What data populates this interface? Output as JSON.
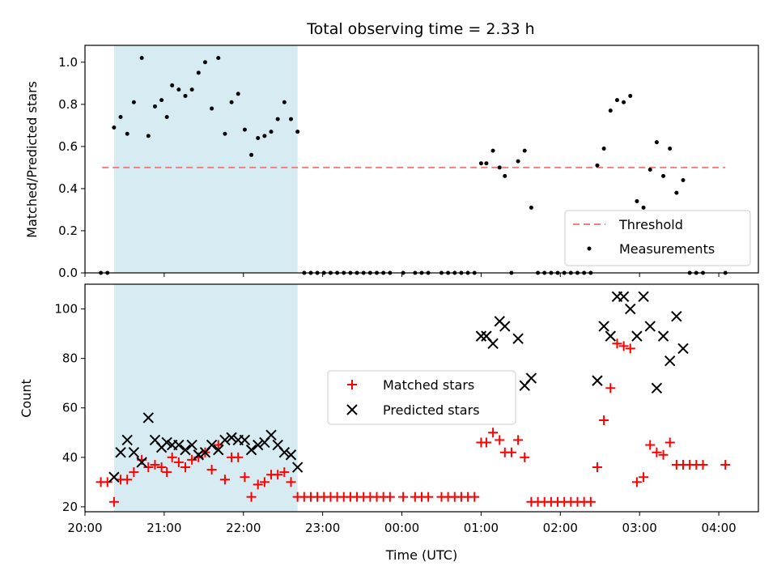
{
  "chart_data": [
    {
      "type": "scatter",
      "title": "Total observing time = 2.33 h",
      "xlabel": "",
      "ylabel": "Matched/Predicted stars",
      "xlim": [
        "20:00",
        "04:30"
      ],
      "xticks": [
        "20:00",
        "21:00",
        "22:00",
        "23:00",
        "00:00",
        "01:00",
        "02:00",
        "03:00",
        "04:00"
      ],
      "ylim": [
        0,
        1.08
      ],
      "yticks": [
        "0.0",
        "0.2",
        "0.4",
        "0.6",
        "0.8",
        "1.0"
      ],
      "grid": false,
      "legend_position": "lower-right",
      "shaded_span": {
        "x": [
          "20:22",
          "22:41"
        ],
        "color": "#add8e6"
      },
      "threshold": {
        "name": "Threshold",
        "value": 0.5,
        "x": [
          "20:13",
          "04:05"
        ],
        "color": "#f08080"
      },
      "series": [
        {
          "name": "Measurements",
          "color": "#000000",
          "points": [
            [
              "20:12",
              0
            ],
            [
              "20:17",
              0
            ],
            [
              "20:22",
              0.69
            ],
            [
              "20:27",
              0.74
            ],
            [
              "20:32",
              0.66
            ],
            [
              "20:37",
              0.81
            ],
            [
              "20:43",
              1.02
            ],
            [
              "20:48",
              0.65
            ],
            [
              "20:53",
              0.79
            ],
            [
              "20:58",
              0.82
            ],
            [
              "21:02",
              0.74
            ],
            [
              "21:06",
              0.89
            ],
            [
              "21:11",
              0.87
            ],
            [
              "21:16",
              0.84
            ],
            [
              "21:21",
              0.87
            ],
            [
              "21:26",
              0.95
            ],
            [
              "21:31",
              1.0
            ],
            [
              "21:36",
              0.78
            ],
            [
              "21:41",
              1.02
            ],
            [
              "21:46",
              0.66
            ],
            [
              "21:51",
              0.81
            ],
            [
              "21:56",
              0.85
            ],
            [
              "22:01",
              0.68
            ],
            [
              "22:06",
              0.56
            ],
            [
              "22:11",
              0.64
            ],
            [
              "22:16",
              0.65
            ],
            [
              "22:21",
              0.67
            ],
            [
              "22:26",
              0.73
            ],
            [
              "22:31",
              0.81
            ],
            [
              "22:36",
              0.73
            ],
            [
              "22:41",
              0.67
            ],
            [
              "22:46",
              0
            ],
            [
              "22:51",
              0
            ],
            [
              "22:56",
              0
            ],
            [
              "23:01",
              0
            ],
            [
              "23:06",
              0
            ],
            [
              "23:11",
              0
            ],
            [
              "23:16",
              0
            ],
            [
              "23:21",
              0
            ],
            [
              "23:26",
              0
            ],
            [
              "23:31",
              0
            ],
            [
              "23:36",
              0
            ],
            [
              "23:41",
              0
            ],
            [
              "23:46",
              0
            ],
            [
              "23:51",
              0
            ],
            [
              "00:01",
              0
            ],
            [
              "00:10",
              0
            ],
            [
              "00:15",
              0
            ],
            [
              "00:20",
              0
            ],
            [
              "00:30",
              0
            ],
            [
              "00:35",
              0
            ],
            [
              "00:40",
              0
            ],
            [
              "00:45",
              0
            ],
            [
              "00:50",
              0
            ],
            [
              "00:55",
              0
            ],
            [
              "01:00",
              0.52
            ],
            [
              "01:04",
              0.52
            ],
            [
              "01:09",
              0.58
            ],
            [
              "01:14",
              0.5
            ],
            [
              "01:18",
              0.46
            ],
            [
              "01:23",
              0
            ],
            [
              "01:28",
              0.53
            ],
            [
              "01:33",
              0.58
            ],
            [
              "01:38",
              0.31
            ],
            [
              "01:43",
              0
            ],
            [
              "01:48",
              0
            ],
            [
              "01:53",
              0
            ],
            [
              "01:58",
              0
            ],
            [
              "02:03",
              0
            ],
            [
              "02:08",
              0
            ],
            [
              "02:13",
              0
            ],
            [
              "02:18",
              0
            ],
            [
              "02:23",
              0
            ],
            [
              "02:28",
              0.51
            ],
            [
              "02:33",
              0.59
            ],
            [
              "02:38",
              0.77
            ],
            [
              "02:43",
              0.82
            ],
            [
              "02:48",
              0.81
            ],
            [
              "02:53",
              0.84
            ],
            [
              "02:58",
              0.34
            ],
            [
              "03:03",
              0.31
            ],
            [
              "03:08",
              0.49
            ],
            [
              "03:13",
              0.62
            ],
            [
              "03:18",
              0.46
            ],
            [
              "03:23",
              0.59
            ],
            [
              "03:28",
              0.38
            ],
            [
              "03:33",
              0.44
            ],
            [
              "03:38",
              0
            ],
            [
              "03:43",
              0
            ],
            [
              "03:48",
              0
            ],
            [
              "04:05",
              0
            ]
          ]
        }
      ]
    },
    {
      "type": "scatter",
      "title": "",
      "xlabel": "Time (UTC)",
      "ylabel": "Count",
      "xlim": [
        "20:00",
        "04:30"
      ],
      "xticks": [
        "20:00",
        "21:00",
        "22:00",
        "23:00",
        "00:00",
        "01:00",
        "02:00",
        "03:00",
        "04:00"
      ],
      "ylim": [
        18,
        110
      ],
      "yticks": [
        "20",
        "40",
        "60",
        "80",
        "100"
      ],
      "grid": false,
      "legend_position": "center",
      "shaded_span": {
        "x": [
          "20:22",
          "22:41"
        ],
        "color": "#add8e6"
      },
      "series": [
        {
          "name": "Matched stars",
          "marker": "plus",
          "color": "#ff0000",
          "points": [
            [
              "20:12",
              30
            ],
            [
              "20:17",
              30
            ],
            [
              "20:22",
              22
            ],
            [
              "20:27",
              31
            ],
            [
              "20:32",
              31
            ],
            [
              "20:37",
              34
            ],
            [
              "20:43",
              39
            ],
            [
              "20:48",
              36
            ],
            [
              "20:53",
              37
            ],
            [
              "20:58",
              36
            ],
            [
              "21:02",
              34
            ],
            [
              "21:06",
              40
            ],
            [
              "21:11",
              38
            ],
            [
              "21:16",
              36
            ],
            [
              "21:21",
              39
            ],
            [
              "21:26",
              40
            ],
            [
              "21:31",
              42
            ],
            [
              "21:36",
              35
            ],
            [
              "21:41",
              45
            ],
            [
              "21:46",
              31
            ],
            [
              "21:51",
              40
            ],
            [
              "21:56",
              40
            ],
            [
              "22:01",
              32
            ],
            [
              "22:06",
              24
            ],
            [
              "22:11",
              29
            ],
            [
              "22:16",
              30
            ],
            [
              "22:21",
              33
            ],
            [
              "22:26",
              33
            ],
            [
              "22:31",
              34
            ],
            [
              "22:36",
              30
            ],
            [
              "22:41",
              24
            ],
            [
              "22:46",
              24
            ],
            [
              "22:51",
              24
            ],
            [
              "22:56",
              24
            ],
            [
              "23:01",
              24
            ],
            [
              "23:06",
              24
            ],
            [
              "23:11",
              24
            ],
            [
              "23:16",
              24
            ],
            [
              "23:21",
              24
            ],
            [
              "23:26",
              24
            ],
            [
              "23:31",
              24
            ],
            [
              "23:36",
              24
            ],
            [
              "23:41",
              24
            ],
            [
              "23:46",
              24
            ],
            [
              "23:51",
              24
            ],
            [
              "00:01",
              24
            ],
            [
              "00:10",
              24
            ],
            [
              "00:15",
              24
            ],
            [
              "00:20",
              24
            ],
            [
              "00:30",
              24
            ],
            [
              "00:35",
              24
            ],
            [
              "00:40",
              24
            ],
            [
              "00:45",
              24
            ],
            [
              "00:50",
              24
            ],
            [
              "00:55",
              24
            ],
            [
              "01:00",
              46
            ],
            [
              "01:04",
              46
            ],
            [
              "01:09",
              50
            ],
            [
              "01:14",
              47
            ],
            [
              "01:18",
              42
            ],
            [
              "01:23",
              42
            ],
            [
              "01:28",
              47
            ],
            [
              "01:33",
              40
            ],
            [
              "01:38",
              22
            ],
            [
              "01:43",
              22
            ],
            [
              "01:48",
              22
            ],
            [
              "01:53",
              22
            ],
            [
              "01:58",
              22
            ],
            [
              "02:03",
              22
            ],
            [
              "02:08",
              22
            ],
            [
              "02:13",
              22
            ],
            [
              "02:18",
              22
            ],
            [
              "02:23",
              22
            ],
            [
              "02:28",
              36
            ],
            [
              "02:33",
              55
            ],
            [
              "02:38",
              68
            ],
            [
              "02:43",
              86
            ],
            [
              "02:48",
              85
            ],
            [
              "02:53",
              84
            ],
            [
              "02:58",
              30
            ],
            [
              "03:03",
              32
            ],
            [
              "03:08",
              45
            ],
            [
              "03:13",
              42
            ],
            [
              "03:18",
              41
            ],
            [
              "03:23",
              46
            ],
            [
              "03:28",
              37
            ],
            [
              "03:33",
              37
            ],
            [
              "03:38",
              37
            ],
            [
              "03:43",
              37
            ],
            [
              "03:48",
              37
            ],
            [
              "04:05",
              37
            ]
          ]
        },
        {
          "name": "Predicted stars",
          "marker": "x",
          "color": "#000000",
          "points": [
            [
              "20:22",
              32
            ],
            [
              "20:27",
              42
            ],
            [
              "20:32",
              47
            ],
            [
              "20:37",
              42
            ],
            [
              "20:43",
              38
            ],
            [
              "20:48",
              56
            ],
            [
              "20:53",
              47
            ],
            [
              "20:58",
              44
            ],
            [
              "21:02",
              46
            ],
            [
              "21:06",
              45
            ],
            [
              "21:11",
              45
            ],
            [
              "21:16",
              43
            ],
            [
              "21:21",
              45
            ],
            [
              "21:26",
              41
            ],
            [
              "21:31",
              42
            ],
            [
              "21:36",
              45
            ],
            [
              "21:41",
              43
            ],
            [
              "21:46",
              47
            ],
            [
              "21:51",
              48
            ],
            [
              "21:56",
              47
            ],
            [
              "22:01",
              47
            ],
            [
              "22:06",
              43
            ],
            [
              "22:11",
              45
            ],
            [
              "22:16",
              46
            ],
            [
              "22:21",
              49
            ],
            [
              "22:26",
              45
            ],
            [
              "22:31",
              42
            ],
            [
              "22:36",
              41
            ],
            [
              "22:41",
              36
            ],
            [
              "01:00",
              89
            ],
            [
              "01:04",
              89
            ],
            [
              "01:09",
              86
            ],
            [
              "01:14",
              95
            ],
            [
              "01:18",
              93
            ],
            [
              "01:28",
              88
            ],
            [
              "01:33",
              69
            ],
            [
              "01:38",
              72
            ],
            [
              "02:28",
              71
            ],
            [
              "02:33",
              93
            ],
            [
              "02:38",
              89
            ],
            [
              "02:43",
              105
            ],
            [
              "02:48",
              105
            ],
            [
              "02:53",
              100
            ],
            [
              "02:58",
              89
            ],
            [
              "03:03",
              105
            ],
            [
              "03:08",
              93
            ],
            [
              "03:13",
              68
            ],
            [
              "03:18",
              89
            ],
            [
              "03:23",
              79
            ],
            [
              "03:28",
              97
            ],
            [
              "03:33",
              84
            ]
          ]
        }
      ]
    }
  ]
}
